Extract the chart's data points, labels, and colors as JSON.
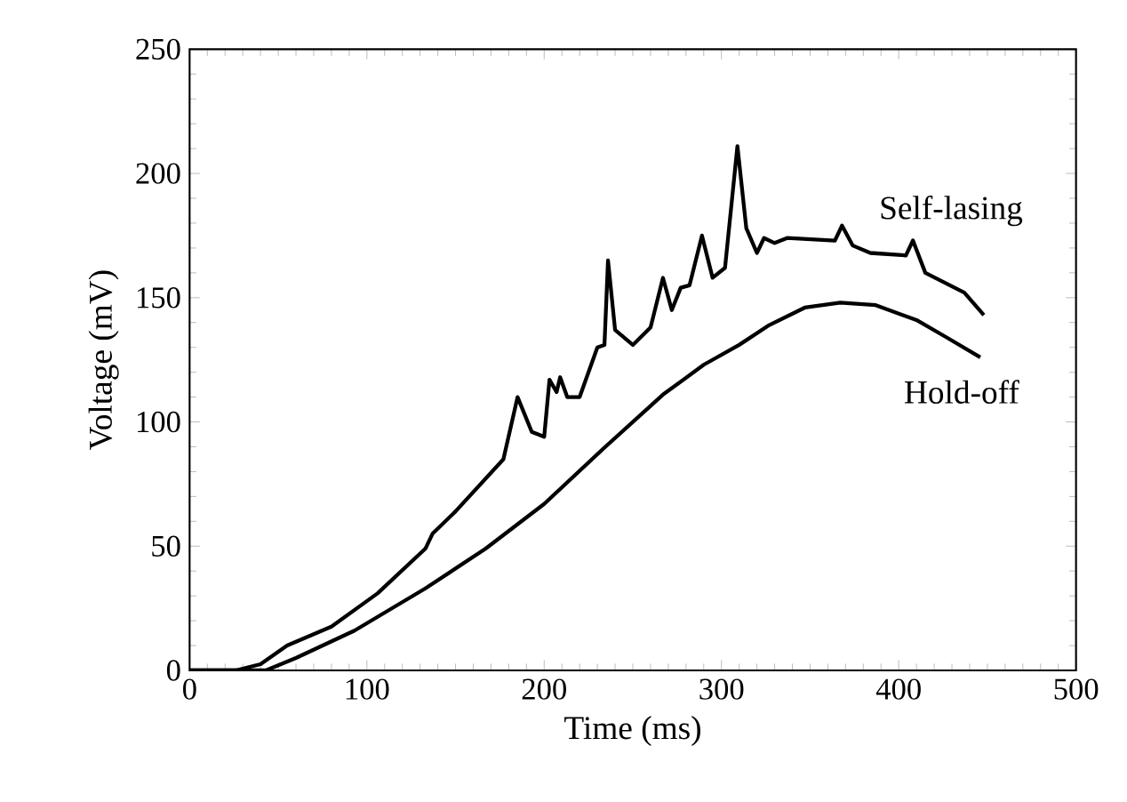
{
  "chart_data": {
    "type": "line",
    "xlabel": "Time (ms)",
    "ylabel": "Voltage (mV)",
    "xlim": [
      0,
      500
    ],
    "ylim": [
      0,
      250
    ],
    "xticks": [
      0,
      100,
      200,
      300,
      400,
      500
    ],
    "yticks": [
      0,
      50,
      100,
      150,
      200,
      250
    ],
    "marker": "none",
    "line_style": "solid",
    "series": [
      {
        "name": "Self-lasing",
        "color": "#000000",
        "x": [
          0,
          26,
          40,
          55,
          80,
          106,
          133,
          137,
          150,
          177,
          185,
          193,
          200,
          203,
          207,
          209,
          213,
          220,
          230,
          234,
          236,
          240,
          250,
          260,
          267,
          272,
          277,
          282,
          289,
          295,
          302,
          309,
          314,
          320,
          324,
          330,
          337,
          364,
          368,
          374,
          384,
          404,
          408,
          415,
          437,
          448
        ],
        "values": [
          0,
          0,
          2.5,
          10,
          17.6,
          31,
          49,
          55,
          64,
          85,
          110,
          96,
          94,
          117,
          112,
          118,
          110,
          110,
          130,
          131,
          165,
          137,
          131,
          138,
          158,
          145,
          154,
          155,
          175,
          158,
          162,
          211,
          178,
          168,
          174,
          172,
          174,
          173,
          179,
          171,
          168,
          167,
          173,
          160,
          152,
          143
        ]
      },
      {
        "name": "Hold-off",
        "color": "#000000",
        "x": [
          0,
          43,
          60,
          93,
          133,
          167,
          200,
          233,
          267,
          290,
          310,
          327,
          347,
          367,
          387,
          410,
          427,
          446
        ],
        "values": [
          0,
          0,
          5,
          16,
          33,
          49,
          67,
          89,
          111,
          123,
          131,
          139,
          146,
          148,
          147,
          141,
          134,
          126
        ]
      }
    ]
  }
}
